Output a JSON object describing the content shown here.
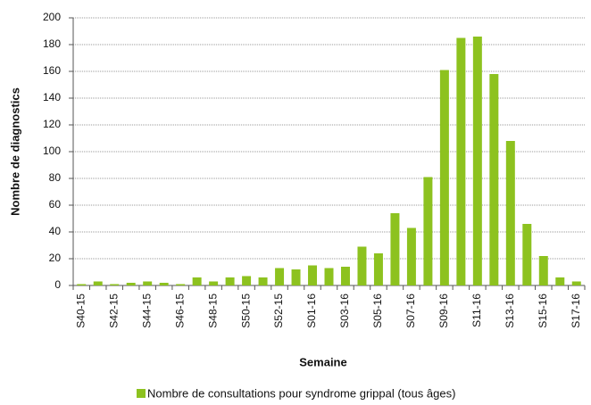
{
  "chart_data": {
    "type": "bar",
    "y_label": "Nombre de diagnostics",
    "x_label": "Semaine",
    "categories": [
      "S40-15",
      null,
      "S42-15",
      null,
      "S44-15",
      null,
      "S46-15",
      null,
      "S48-15",
      null,
      "S50-15",
      null,
      "S52-15",
      null,
      "S01-16",
      null,
      "S03-16",
      null,
      "S05-16",
      null,
      "S07-16",
      null,
      "S09-16",
      null,
      "S11-16",
      null,
      "S13-16",
      null,
      "S15-16",
      null,
      "S17-16"
    ],
    "series": [
      {
        "name": "Nombre de consultations pour syndrome grippal (tous âges)",
        "color": "#8dc21f",
        "values": [
          1,
          3,
          1,
          2,
          3,
          2,
          1,
          6,
          3,
          6,
          7,
          6,
          13,
          12,
          15,
          13,
          14,
          29,
          24,
          54,
          43,
          81,
          161,
          185,
          186,
          158,
          108,
          46,
          22,
          6,
          3
        ]
      }
    ],
    "ylim": [
      0,
      200
    ],
    "yticks": [
      0,
      20,
      40,
      60,
      80,
      100,
      120,
      140,
      160,
      180,
      200
    ],
    "grid": true
  }
}
